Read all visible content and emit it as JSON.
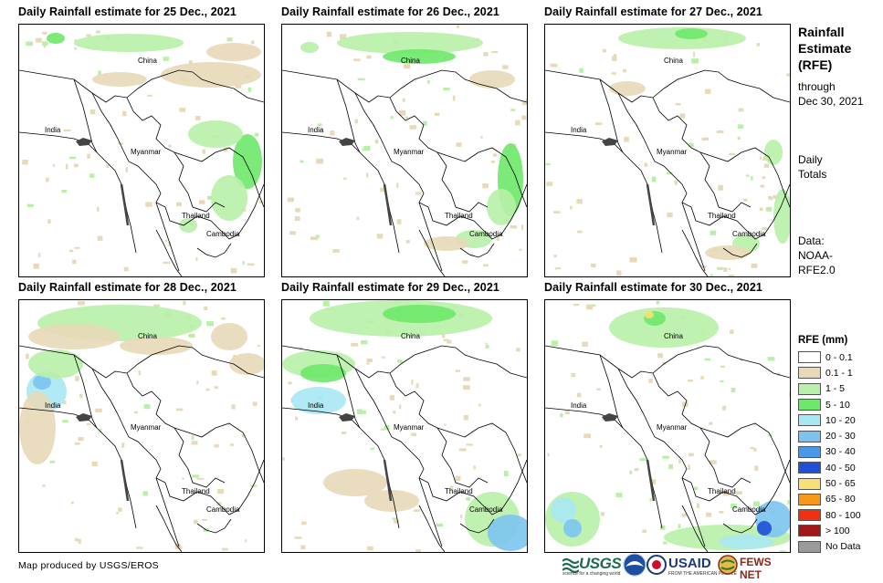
{
  "panels": [
    {
      "title": "Daily Rainfall estimate for 25 Dec., 2021"
    },
    {
      "title": "Daily Rainfall estimate for 26 Dec., 2021"
    },
    {
      "title": "Daily Rainfall estimate for 27 Dec., 2021"
    },
    {
      "title": "Daily Rainfall estimate for 28 Dec., 2021"
    },
    {
      "title": "Daily Rainfall estimate for 29 Dec., 2021"
    },
    {
      "title": "Daily Rainfall estimate for 30 Dec., 2021"
    }
  ],
  "map_labels": {
    "china": "China",
    "india": "India",
    "myanmar": "Myanmar",
    "thailand": "Thailand",
    "cambodia": "Cambodia"
  },
  "side": {
    "title_line1": "Rainfall",
    "title_line2": "Estimate",
    "title_line3": "(RFE)",
    "through": "through",
    "date": "Dec 30, 2021",
    "daily_line1": "Daily",
    "daily_line2": "Totals",
    "data_line1": "Data:",
    "data_line2": "NOAA-",
    "data_line3": "RFE2.0"
  },
  "legend": {
    "title": "RFE (mm)",
    "items": [
      {
        "label": "0 - 0.1",
        "color": "#ffffff"
      },
      {
        "label": "0.1 - 1",
        "color": "#e8d9b8"
      },
      {
        "label": "1 - 5",
        "color": "#b8f0a8"
      },
      {
        "label": "5 - 10",
        "color": "#6ee86a"
      },
      {
        "label": "10 - 20",
        "color": "#a8e8f4"
      },
      {
        "label": "20 - 30",
        "color": "#7cc4f0"
      },
      {
        "label": "30 - 40",
        "color": "#4a98e8"
      },
      {
        "label": "40 - 50",
        "color": "#1e50d8"
      },
      {
        "label": "50 - 65",
        "color": "#f8e078"
      },
      {
        "label": "65 - 80",
        "color": "#f89818"
      },
      {
        "label": "80 - 100",
        "color": "#f03010"
      },
      {
        "label": "> 100",
        "color": "#a01818"
      },
      {
        "label": "No Data",
        "color": "#9a9a9a"
      }
    ]
  },
  "credit": "Map produced by USGS/EROS",
  "logos": {
    "usgs": "USGS",
    "usgs_tag": "science for a changing world",
    "usaid": "USAID",
    "usaid_tag": "FROM THE AMERICAN PEOPLE",
    "fews": "FEWS NET"
  }
}
